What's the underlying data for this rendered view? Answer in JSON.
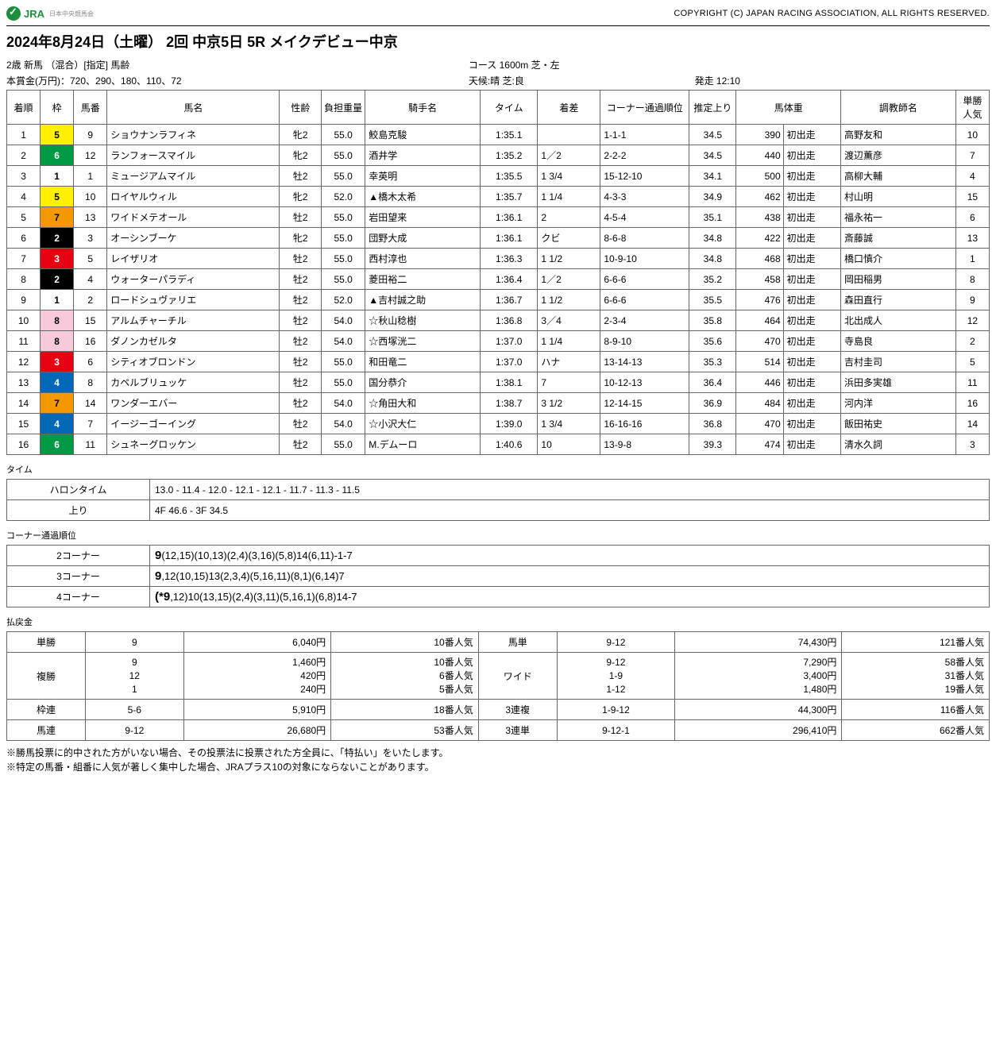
{
  "header": {
    "logo_text": "JRA",
    "logo_sub": "日本中央競馬会",
    "copyright": "COPYRIGHT (C) JAPAN RACING ASSOCIATION, ALL RIGHTS RESERVED."
  },
  "title": "2024年8月24日（土曜） 2回 中京5日 5R メイクデビュー中京",
  "meta": {
    "class": "2歳 新馬 （混合）[指定] 馬齢",
    "course": "コース 1600m 芝・左",
    "prize": "本賞金(万円)：720、290、180、110、72",
    "weather": "天候:晴 芝:良",
    "start": "発走 12:10"
  },
  "columns": [
    "着順",
    "枠",
    "馬番",
    "馬名",
    "性齢",
    "負担重量",
    "騎手名",
    "タイム",
    "着差",
    "コーナー通過順位",
    "推定上り",
    "馬体重",
    "",
    "調教師名",
    "単勝人気"
  ],
  "colWidths": [
    "3.2%",
    "3.2%",
    "3.2%",
    "16.5%",
    "4%",
    "4.2%",
    "11%",
    "5.5%",
    "6%",
    "8.5%",
    "4.5%",
    "4.5%",
    "5.5%",
    "11%",
    "3.2%"
  ],
  "rows": [
    {
      "p": 1,
      "w": 5,
      "n": 9,
      "hn": "ショウナンラフィネ",
      "sa": "牝2",
      "wt": "55.0",
      "jk": "鮫島克駿",
      "tm": "1:35.1",
      "mg": "",
      "cp": "1-1-1",
      "ag": "34.5",
      "bw": "390",
      "bwd": "初出走",
      "tr": "高野友和",
      "pop": "10"
    },
    {
      "p": 2,
      "w": 6,
      "n": 12,
      "hn": "ランフォースマイル",
      "sa": "牝2",
      "wt": "55.0",
      "jk": "酒井学",
      "tm": "1:35.2",
      "mg": "1／2",
      "cp": "2-2-2",
      "ag": "34.5",
      "bw": "440",
      "bwd": "初出走",
      "tr": "渡辺薫彦",
      "pop": "7"
    },
    {
      "p": 3,
      "w": 1,
      "n": 1,
      "hn": "ミュージアムマイル",
      "sa": "牡2",
      "wt": "55.0",
      "jk": "幸英明",
      "tm": "1:35.5",
      "mg": "1 3/4",
      "cp": "15-12-10",
      "ag": "34.1",
      "bw": "500",
      "bwd": "初出走",
      "tr": "高柳大輔",
      "pop": "4"
    },
    {
      "p": 4,
      "w": 5,
      "n": 10,
      "hn": "ロイヤルウィル",
      "sa": "牝2",
      "wt": "52.0",
      "jk": "▲橋木太希",
      "tm": "1:35.7",
      "mg": "1 1/4",
      "cp": "4-3-3",
      "ag": "34.9",
      "bw": "462",
      "bwd": "初出走",
      "tr": "村山明",
      "pop": "15"
    },
    {
      "p": 5,
      "w": 7,
      "n": 13,
      "hn": "ワイドメテオール",
      "sa": "牡2",
      "wt": "55.0",
      "jk": "岩田望来",
      "tm": "1:36.1",
      "mg": "2",
      "cp": "4-5-4",
      "ag": "35.1",
      "bw": "438",
      "bwd": "初出走",
      "tr": "福永祐一",
      "pop": "6"
    },
    {
      "p": 6,
      "w": 2,
      "n": 3,
      "hn": "オーシンブーケ",
      "sa": "牝2",
      "wt": "55.0",
      "jk": "団野大成",
      "tm": "1:36.1",
      "mg": "クビ",
      "cp": "8-6-8",
      "ag": "34.8",
      "bw": "422",
      "bwd": "初出走",
      "tr": "斎藤誠",
      "pop": "13"
    },
    {
      "p": 7,
      "w": 3,
      "n": 5,
      "hn": "レイザリオ",
      "sa": "牡2",
      "wt": "55.0",
      "jk": "西村淳也",
      "tm": "1:36.3",
      "mg": "1 1/2",
      "cp": "10-9-10",
      "ag": "34.8",
      "bw": "468",
      "bwd": "初出走",
      "tr": "橋口慎介",
      "pop": "1"
    },
    {
      "p": 8,
      "w": 2,
      "n": 4,
      "hn": "ウォーターパラディ",
      "sa": "牡2",
      "wt": "55.0",
      "jk": "菱田裕二",
      "tm": "1:36.4",
      "mg": "1／2",
      "cp": "6-6-6",
      "ag": "35.2",
      "bw": "458",
      "bwd": "初出走",
      "tr": "岡田稲男",
      "pop": "8"
    },
    {
      "p": 9,
      "w": 1,
      "n": 2,
      "hn": "ロードシュヴァリエ",
      "sa": "牡2",
      "wt": "52.0",
      "jk": "▲吉村誠之助",
      "tm": "1:36.7",
      "mg": "1 1/2",
      "cp": "6-6-6",
      "ag": "35.5",
      "bw": "476",
      "bwd": "初出走",
      "tr": "森田直行",
      "pop": "9"
    },
    {
      "p": 10,
      "w": 8,
      "n": 15,
      "hn": "アルムチャーチル",
      "sa": "牡2",
      "wt": "54.0",
      "jk": "☆秋山稔樹",
      "tm": "1:36.8",
      "mg": "3／4",
      "cp": "2-3-4",
      "ag": "35.8",
      "bw": "464",
      "bwd": "初出走",
      "tr": "北出成人",
      "pop": "12"
    },
    {
      "p": 11,
      "w": 8,
      "n": 16,
      "hn": "ダノンカゼルタ",
      "sa": "牡2",
      "wt": "54.0",
      "jk": "☆西塚洸二",
      "tm": "1:37.0",
      "mg": "1 1/4",
      "cp": "8-9-10",
      "ag": "35.6",
      "bw": "470",
      "bwd": "初出走",
      "tr": "寺島良",
      "pop": "2"
    },
    {
      "p": 12,
      "w": 3,
      "n": 6,
      "hn": "シティオブロンドン",
      "sa": "牡2",
      "wt": "55.0",
      "jk": "和田竜二",
      "tm": "1:37.0",
      "mg": "ハナ",
      "cp": "13-14-13",
      "ag": "35.3",
      "bw": "514",
      "bwd": "初出走",
      "tr": "吉村圭司",
      "pop": "5"
    },
    {
      "p": 13,
      "w": 4,
      "n": 8,
      "hn": "カペルブリュッケ",
      "sa": "牡2",
      "wt": "55.0",
      "jk": "国分恭介",
      "tm": "1:38.1",
      "mg": "7",
      "cp": "10-12-13",
      "ag": "36.4",
      "bw": "446",
      "bwd": "初出走",
      "tr": "浜田多実雄",
      "pop": "11"
    },
    {
      "p": 14,
      "w": 7,
      "n": 14,
      "hn": "ワンダーエバー",
      "sa": "牡2",
      "wt": "54.0",
      "jk": "☆角田大和",
      "tm": "1:38.7",
      "mg": "3 1/2",
      "cp": "12-14-15",
      "ag": "36.9",
      "bw": "484",
      "bwd": "初出走",
      "tr": "河内洋",
      "pop": "16"
    },
    {
      "p": 15,
      "w": 4,
      "n": 7,
      "hn": "イージーゴーイング",
      "sa": "牡2",
      "wt": "54.0",
      "jk": "☆小沢大仁",
      "tm": "1:39.0",
      "mg": "1 3/4",
      "cp": "16-16-16",
      "ag": "36.8",
      "bw": "470",
      "bwd": "初出走",
      "tr": "飯田祐史",
      "pop": "14"
    },
    {
      "p": 16,
      "w": 6,
      "n": 11,
      "hn": "シュネーグロッケン",
      "sa": "牡2",
      "wt": "55.0",
      "jk": "M.デムーロ",
      "tm": "1:40.6",
      "mg": "10",
      "cp": "13-9-8",
      "ag": "39.3",
      "bw": "474",
      "bwd": "初出走",
      "tr": "清水久詞",
      "pop": "3"
    }
  ],
  "section_labels": {
    "time": "タイム",
    "corner": "コーナー通過順位",
    "payout": "払戻金"
  },
  "time_rows": [
    {
      "h": "ハロンタイム",
      "v": "13.0 - 11.4 - 12.0 - 12.1 - 12.1 - 11.7 - 11.3 - 11.5"
    },
    {
      "h": "上り",
      "v": "4F 46.6 - 3F 34.5"
    }
  ],
  "corner_rows": [
    {
      "h": "2コーナー",
      "lead": "9",
      "rest": "(12,15)(10,13)(2,4)(3,16)(5,8)14(6,11)-1-7"
    },
    {
      "h": "3コーナー",
      "lead": "9",
      "rest": ",12(10,15)13(2,3,4)(5,16,11)(8,1)(6,14)7"
    },
    {
      "h": "4コーナー",
      "lead": "(*9",
      "rest": ",12)10(13,15)(2,4)(3,11)(5,16,1)(6,8)14-7",
      "prefix": ""
    }
  ],
  "payout": [
    {
      "t": "単勝",
      "c": "9",
      "y": "6,040円",
      "p": "10番人気",
      "t2": "馬単",
      "c2": "9-12",
      "y2": "74,430円",
      "p2": "121番人気"
    },
    {
      "t": "複勝",
      "c": "9\n12\n1",
      "y": "1,460円\n420円\n240円",
      "p": "10番人気\n6番人気\n5番人気",
      "t2": "ワイド",
      "c2": "9-12\n1-9\n1-12",
      "y2": "7,290円\n3,400円\n1,480円",
      "p2": "58番人気\n31番人気\n19番人気"
    },
    {
      "t": "枠連",
      "c": "5-6",
      "y": "5,910円",
      "p": "18番人気",
      "t2": "3連複",
      "c2": "1-9-12",
      "y2": "44,300円",
      "p2": "116番人気"
    },
    {
      "t": "馬連",
      "c": "9-12",
      "y": "26,680円",
      "p": "53番人気",
      "t2": "3連単",
      "c2": "9-12-1",
      "y2": "296,410円",
      "p2": "662番人気"
    }
  ],
  "payout_widths": [
    "8%",
    "10%",
    "15%",
    "15%",
    "8%",
    "12%",
    "17%",
    "15%"
  ],
  "notes": [
    "※勝馬投票に的中された方がいない場合、その投票法に投票された方全員に、「特払い」をいたします。",
    "※特定の馬番・組番に人気が著しく集中した場合、JRAプラス10の対象にならないことがあります。"
  ]
}
